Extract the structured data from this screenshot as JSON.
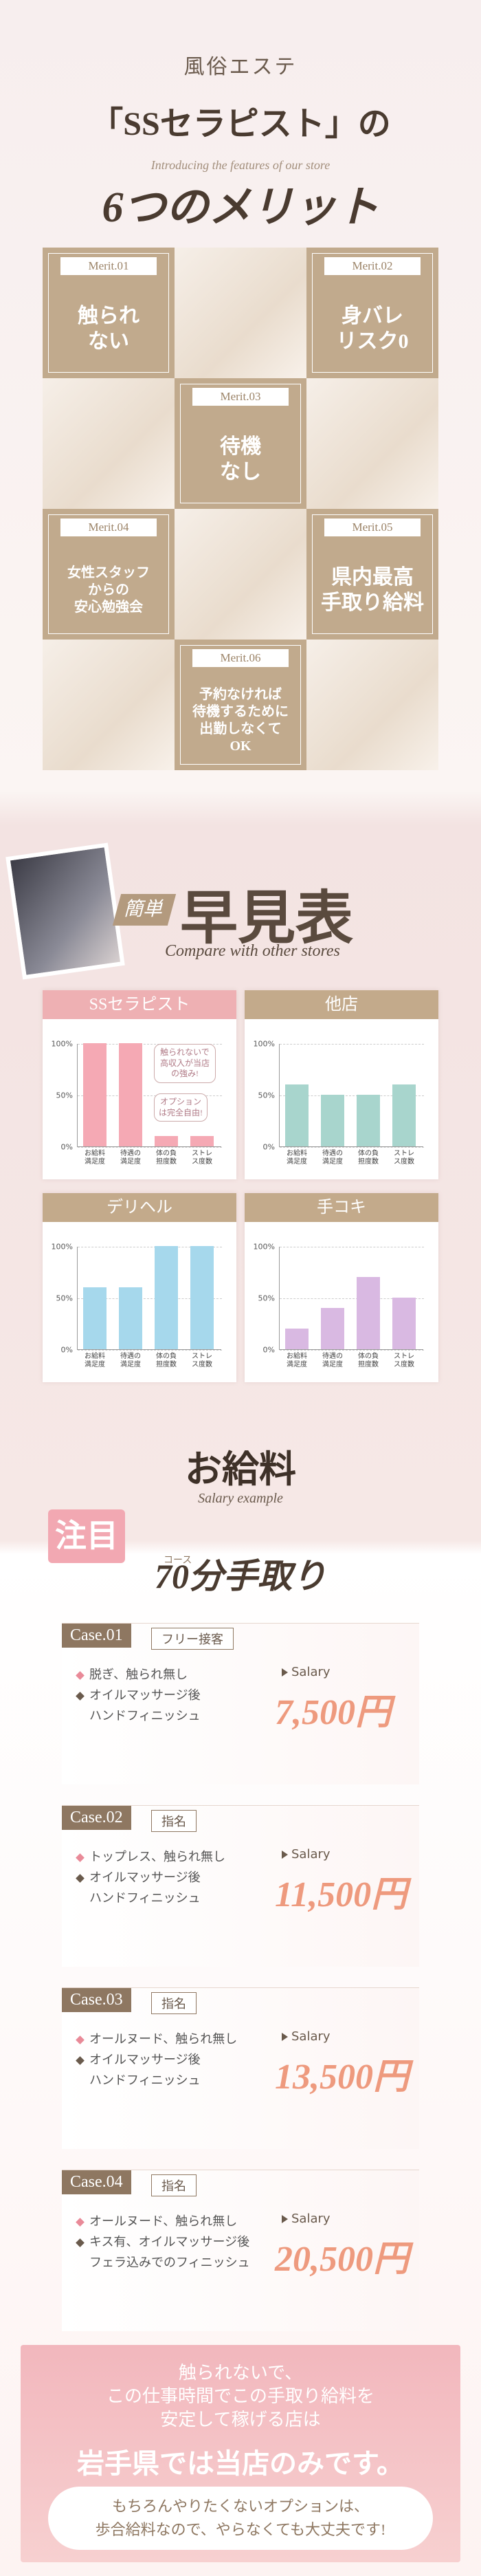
{
  "header": {
    "kicker": "風俗エステ",
    "title": "「SSセラピスト」の",
    "subtitle": "Introducing the features of our store",
    "heading": "6つのメリット"
  },
  "merits": [
    {
      "label": "Merit.01",
      "lines": [
        "触られ",
        "ない"
      ]
    },
    {
      "label": "Merit.02",
      "lines": [
        "身バレ",
        "リスク0"
      ]
    },
    {
      "label": "Merit.03",
      "lines": [
        "待機",
        "なし"
      ]
    },
    {
      "label": "Merit.04",
      "lines": [
        "女性スタッフ",
        "からの",
        "安心勉強会"
      ]
    },
    {
      "label": "Merit.05",
      "lines": [
        "県内最高",
        "手取り給料"
      ]
    },
    {
      "label": "Merit.06",
      "lines": [
        "予約なければ",
        "待機するために",
        "出勤しなくて",
        "OK"
      ]
    }
  ],
  "comparison": {
    "badge": "簡単",
    "title": "早見表",
    "subtitle": "Compare with other stores"
  },
  "chart_data": [
    {
      "type": "bar",
      "title": "SSセラピスト",
      "categories": [
        "お給料満足度",
        "待遇の満足度",
        "体の負担度数",
        "ストレス度数"
      ],
      "values": [
        100,
        100,
        10,
        10
      ],
      "color": "#f5a9b4",
      "ylim": [
        0,
        100
      ],
      "yticks": [
        {
          "value": 0,
          "label": "0%"
        },
        {
          "value": 50,
          "label": "50%"
        },
        {
          "value": 100,
          "label": "100%"
        }
      ],
      "grid": true,
      "annotations": [
        "触られないで高収入が当店の強み!",
        "オプションは完全自由!"
      ]
    },
    {
      "type": "bar",
      "title": "他店",
      "categories": [
        "お給料満足度",
        "待遇の満足度",
        "体の負担度数",
        "ストレス度数"
      ],
      "values": [
        60,
        50,
        50,
        60
      ],
      "color": "#a8d5cd",
      "ylim": [
        0,
        100
      ],
      "yticks": [
        {
          "value": 0,
          "label": "0%"
        },
        {
          "value": 50,
          "label": "50%"
        },
        {
          "value": 100,
          "label": "100%"
        }
      ],
      "grid": true
    },
    {
      "type": "bar",
      "title": "デリヘル",
      "categories": [
        "お給料満足度",
        "待遇の満足度",
        "体の負担度数",
        "ストレス度数"
      ],
      "values": [
        60,
        60,
        100,
        100
      ],
      "color": "#a6d8ec",
      "ylim": [
        0,
        100
      ],
      "yticks": [
        {
          "value": 0,
          "label": "0%"
        },
        {
          "value": 50,
          "label": "50%"
        },
        {
          "value": 100,
          "label": "100%"
        }
      ],
      "grid": true
    },
    {
      "type": "bar",
      "title": "手コキ",
      "categories": [
        "お給料満足度",
        "待遇の満足度",
        "体の負担度数",
        "ストレス度数"
      ],
      "values": [
        20,
        40,
        70,
        50
      ],
      "color": "#d9b9e2",
      "ylim": [
        0,
        100
      ],
      "yticks": [
        {
          "value": 0,
          "label": "0%"
        },
        {
          "value": 50,
          "label": "50%"
        },
        {
          "value": 100,
          "label": "100%"
        }
      ],
      "grid": true
    }
  ],
  "salary": {
    "title": "お給料",
    "subtitle": "Salary example",
    "badge": "注目",
    "course": "70分手取り",
    "course_ruby": "コース",
    "cases": [
      {
        "label": "Case.01",
        "type": "フリー接客",
        "items": [
          "脱ぎ、触られ無し",
          "オイルマッサージ後",
          "ハンドフィニッシュ"
        ],
        "salary_label": "Salary",
        "amount": "7,500円"
      },
      {
        "label": "Case.02",
        "type": "指名",
        "items": [
          "トップレス、触られ無し",
          "オイルマッサージ後",
          "ハンドフィニッシュ"
        ],
        "salary_label": "Salary",
        "amount": "11,500円"
      },
      {
        "label": "Case.03",
        "type": "指名",
        "items": [
          "オールヌード、触られ無し",
          "オイルマッサージ後",
          "ハンドフィニッシュ"
        ],
        "salary_label": "Salary",
        "amount": "13,500円"
      },
      {
        "label": "Case.04",
        "type": "指名",
        "items": [
          "オールヌード、触られ無し",
          "キス有、オイルマッサージ後",
          "フェラ込みでのフィニッシュ"
        ],
        "salary_label": "Salary",
        "amount": "20,500円"
      }
    ],
    "closing": {
      "lines": [
        "触られないで、",
        "この仕事時間でこの手取り給料を",
        "安定して稼げる店は"
      ],
      "highlight": "岩手県では当店のみです。",
      "note": [
        "もちろんやりたくないオプションは、",
        "歩合給料なので、やらなくても大丈夫です!"
      ]
    }
  }
}
